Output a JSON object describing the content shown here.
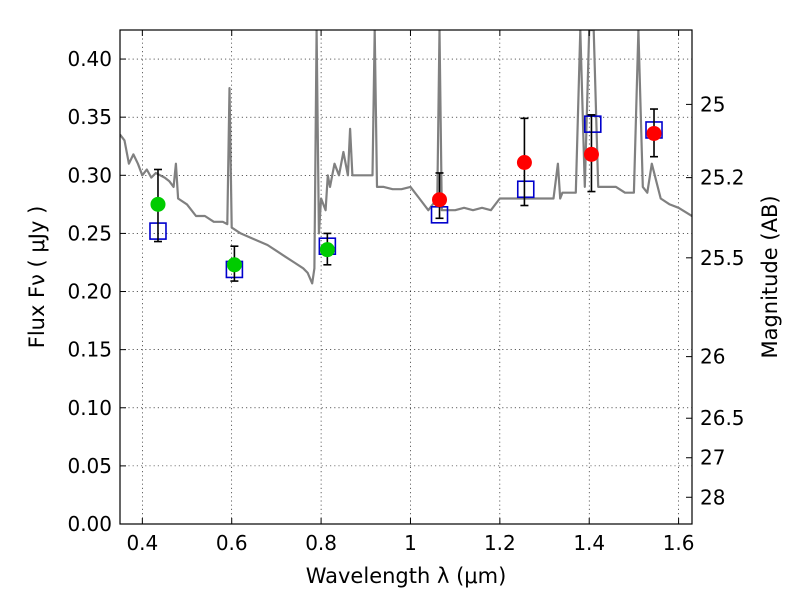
{
  "chart_data": {
    "type": "scatter",
    "xlabel": "Wavelength  λ (μm)",
    "ylabel": "Flux  Fν  ( μJy )",
    "ylabel_right": "Magnitude (AB)",
    "xlim": [
      0.35,
      1.63
    ],
    "ylim": [
      0.0,
      0.425
    ],
    "grid": true,
    "x_ticks": [
      0.4,
      0.6,
      0.8,
      1.0,
      1.2,
      1.4,
      1.6
    ],
    "x_tick_labels": [
      "0.4",
      "0.6",
      "0.8",
      "1",
      "1.2",
      "1.4",
      "1.6"
    ],
    "y_ticks": [
      0.0,
      0.05,
      0.1,
      0.15,
      0.2,
      0.25,
      0.3,
      0.35,
      0.4
    ],
    "y_tick_labels": [
      "0.00",
      "0.05",
      "0.10",
      "0.15",
      "0.20",
      "0.25",
      "0.30",
      "0.35",
      "0.40"
    ],
    "right_ticks": [
      {
        "flux": 0.361,
        "label": "25"
      },
      {
        "flux": 0.298,
        "label": "25.2"
      },
      {
        "flux": 0.229,
        "label": "25.5"
      },
      {
        "flux": 0.144,
        "label": "26"
      },
      {
        "flux": 0.091,
        "label": "26.5"
      },
      {
        "flux": 0.057,
        "label": "27"
      },
      {
        "flux": 0.023,
        "label": "28"
      }
    ],
    "colors": {
      "model": "#808080",
      "observed_blue_band": "#00cc00",
      "observed_red_band": "#ff0000",
      "model_photometry": "#0000cc",
      "errorbar": "#000000"
    },
    "series": [
      {
        "kind": "model_spectrum",
        "x": [
          0.35,
          0.36,
          0.37,
          0.38,
          0.39,
          0.4,
          0.41,
          0.42,
          0.43,
          0.44,
          0.45,
          0.46,
          0.47,
          0.475,
          0.48,
          0.5,
          0.52,
          0.54,
          0.56,
          0.58,
          0.59,
          0.595,
          0.6,
          0.62,
          0.65,
          0.68,
          0.7,
          0.72,
          0.74,
          0.76,
          0.77,
          0.78,
          0.785,
          0.79,
          0.795,
          0.8,
          0.81,
          0.815,
          0.82,
          0.83,
          0.84,
          0.85,
          0.86,
          0.865,
          0.87,
          0.88,
          0.9,
          0.915,
          0.92,
          0.925,
          0.94,
          0.96,
          0.98,
          1.0,
          1.02,
          1.04,
          1.06,
          1.065,
          1.07,
          1.08,
          1.1,
          1.12,
          1.14,
          1.16,
          1.18,
          1.2,
          1.22,
          1.24,
          1.26,
          1.28,
          1.3,
          1.32,
          1.33,
          1.335,
          1.34,
          1.35,
          1.37,
          1.38,
          1.39,
          1.4,
          1.41,
          1.42,
          1.44,
          1.46,
          1.48,
          1.5,
          1.51,
          1.52,
          1.53,
          1.54,
          1.56,
          1.58,
          1.6,
          1.63
        ],
        "y": [
          0.335,
          0.33,
          0.31,
          0.318,
          0.31,
          0.3,
          0.305,
          0.298,
          0.302,
          0.3,
          0.298,
          0.295,
          0.29,
          0.31,
          0.28,
          0.275,
          0.265,
          0.265,
          0.26,
          0.26,
          0.258,
          0.375,
          0.255,
          0.25,
          0.245,
          0.24,
          0.235,
          0.23,
          0.225,
          0.22,
          0.216,
          0.207,
          0.22,
          0.425,
          0.25,
          0.28,
          0.27,
          0.3,
          0.29,
          0.31,
          0.3,
          0.32,
          0.3,
          0.34,
          0.3,
          0.3,
          0.3,
          0.3,
          0.425,
          0.29,
          0.29,
          0.288,
          0.288,
          0.29,
          0.28,
          0.27,
          0.28,
          0.425,
          0.27,
          0.27,
          0.27,
          0.272,
          0.27,
          0.272,
          0.27,
          0.28,
          0.28,
          0.28,
          0.28,
          0.28,
          0.28,
          0.28,
          0.31,
          0.28,
          0.285,
          0.285,
          0.285,
          0.425,
          0.29,
          0.425,
          0.425,
          0.29,
          0.29,
          0.29,
          0.285,
          0.285,
          0.425,
          0.29,
          0.285,
          0.31,
          0.28,
          0.275,
          0.272,
          0.265
        ]
      },
      {
        "kind": "observed",
        "x": [
          0.435,
          0.606,
          0.814
        ],
        "y": [
          0.275,
          0.223,
          0.236
        ],
        "yerr_low": [
          0.243,
          0.209,
          0.223
        ],
        "yerr_high": [
          0.305,
          0.239,
          0.25
        ]
      },
      {
        "kind": "observed",
        "x": [
          1.065,
          1.255,
          1.405,
          1.545
        ],
        "y": [
          0.279,
          0.311,
          0.318,
          0.336
        ],
        "yerr_low": [
          0.263,
          0.274,
          0.286,
          0.316
        ],
        "yerr_high": [
          0.302,
          0.349,
          0.352,
          0.357
        ]
      },
      {
        "kind": "model_photometry",
        "x": [
          0.435,
          0.606,
          0.814,
          1.065,
          1.258,
          1.408,
          1.545
        ],
        "y": [
          0.252,
          0.219,
          0.239,
          0.266,
          0.288,
          0.344,
          0.339
        ]
      }
    ]
  }
}
